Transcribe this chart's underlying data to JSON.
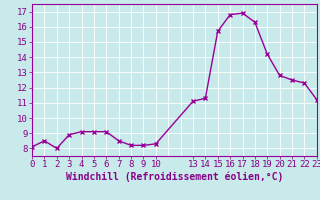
{
  "x": [
    0,
    1,
    2,
    3,
    4,
    5,
    6,
    7,
    8,
    9,
    10,
    13,
    14,
    15,
    16,
    17,
    18,
    19,
    20,
    21,
    22,
    23
  ],
  "y": [
    8.1,
    8.5,
    8.0,
    8.9,
    9.1,
    9.1,
    9.1,
    8.5,
    8.2,
    8.2,
    8.3,
    11.1,
    11.3,
    15.7,
    16.8,
    16.9,
    16.3,
    14.2,
    12.8,
    12.5,
    12.3,
    11.2
  ],
  "line_color": "#990099",
  "marker": "x",
  "bg_color": "#c8eaea",
  "grid_color": "#ffffff",
  "xlabel": "Windchill (Refroidissement éolien,°C)",
  "xlim": [
    0,
    23
  ],
  "ylim": [
    7.5,
    17.5
  ],
  "yticks": [
    8,
    9,
    10,
    11,
    12,
    13,
    14,
    15,
    16,
    17
  ],
  "xticks": [
    0,
    1,
    2,
    3,
    4,
    5,
    6,
    7,
    8,
    9,
    10,
    13,
    14,
    15,
    16,
    17,
    18,
    19,
    20,
    21,
    22,
    23
  ],
  "tick_fontsize": 6.5,
  "label_fontsize": 7,
  "text_color": "#880088",
  "linewidth": 1.0,
  "markersize": 3.5
}
